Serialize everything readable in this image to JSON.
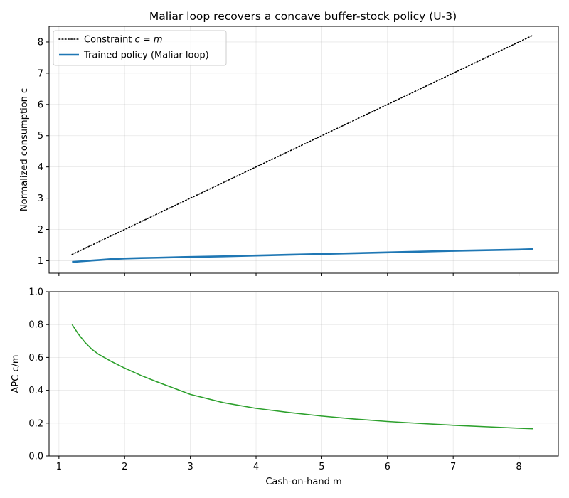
{
  "title": "Maliar loop recovers a concave buffer-stock policy (U-3)",
  "colors": {
    "constraint": "#000000",
    "policy": "#1f77b4",
    "apc": "#2ca02c",
    "grid": "#b0b0b0"
  },
  "chart_data": [
    {
      "type": "line",
      "panel": "top",
      "title": "Maliar loop recovers a concave buffer-stock policy (U-3)",
      "xlabel": "",
      "ylabel": "Normalized consumption c",
      "xlim": [
        0.85,
        8.6
      ],
      "ylim": [
        0.6,
        8.5
      ],
      "xticks": [
        1,
        2,
        3,
        4,
        5,
        6,
        7,
        8
      ],
      "xticklabels": [
        "",
        "",
        "",
        "",
        "",
        "",
        "",
        ""
      ],
      "yticks": [
        1,
        2,
        3,
        4,
        5,
        6,
        7,
        8
      ],
      "yticklabels": [
        "1",
        "2",
        "3",
        "4",
        "5",
        "6",
        "7",
        "8"
      ],
      "grid": true,
      "legend": {
        "placement": "upper-left",
        "entries": [
          {
            "label_prefix": "Constraint ",
            "label_math": "c = m",
            "style": "dotted",
            "color": "#000000"
          },
          {
            "label": "Trained policy (Maliar loop)",
            "style": "solid",
            "color": "#1f77b4"
          }
        ]
      },
      "series": [
        {
          "name": "Constraint c = m",
          "style": "dotted",
          "color": "#000000",
          "x": [
            1.2,
            2.0,
            3.0,
            4.0,
            5.0,
            6.0,
            7.0,
            8.0,
            8.22
          ],
          "y": [
            1.2,
            2.0,
            3.0,
            4.0,
            5.0,
            6.0,
            7.0,
            8.0,
            8.22
          ]
        },
        {
          "name": "Trained policy (Maliar loop)",
          "style": "solid",
          "color": "#1f77b4",
          "x": [
            1.2,
            1.4,
            1.6,
            1.8,
            2.0,
            2.25,
            2.5,
            3.0,
            3.5,
            4.0,
            4.5,
            5.0,
            5.5,
            6.0,
            6.5,
            7.0,
            7.5,
            8.0,
            8.22
          ],
          "y": [
            0.96,
            0.99,
            1.02,
            1.05,
            1.07,
            1.085,
            1.095,
            1.12,
            1.14,
            1.165,
            1.19,
            1.215,
            1.24,
            1.265,
            1.29,
            1.315,
            1.335,
            1.355,
            1.37
          ]
        }
      ]
    },
    {
      "type": "line",
      "panel": "bottom",
      "xlabel": "Cash-on-hand m",
      "ylabel": "APC c/m",
      "xlim": [
        0.85,
        8.6
      ],
      "ylim": [
        0.0,
        1.0
      ],
      "xticks": [
        1,
        2,
        3,
        4,
        5,
        6,
        7,
        8
      ],
      "xticklabels": [
        "1",
        "2",
        "3",
        "4",
        "5",
        "6",
        "7",
        "8"
      ],
      "yticks": [
        0.0,
        0.2,
        0.4,
        0.6,
        0.8,
        1.0
      ],
      "yticklabels": [
        "0.0",
        "0.2",
        "0.4",
        "0.6",
        "0.8",
        "1.0"
      ],
      "grid": true,
      "series": [
        {
          "name": "APC c/m",
          "style": "solid",
          "color": "#2ca02c",
          "x": [
            1.2,
            1.3,
            1.4,
            1.5,
            1.6,
            1.8,
            2.0,
            2.25,
            2.5,
            3.0,
            3.5,
            4.0,
            4.5,
            5.0,
            5.5,
            6.0,
            6.5,
            7.0,
            7.5,
            8.0,
            8.22
          ],
          "y": [
            0.8,
            0.74,
            0.69,
            0.65,
            0.62,
            0.575,
            0.535,
            0.49,
            0.45,
            0.375,
            0.325,
            0.29,
            0.265,
            0.243,
            0.225,
            0.21,
            0.198,
            0.187,
            0.178,
            0.169,
            0.166
          ]
        }
      ]
    }
  ]
}
